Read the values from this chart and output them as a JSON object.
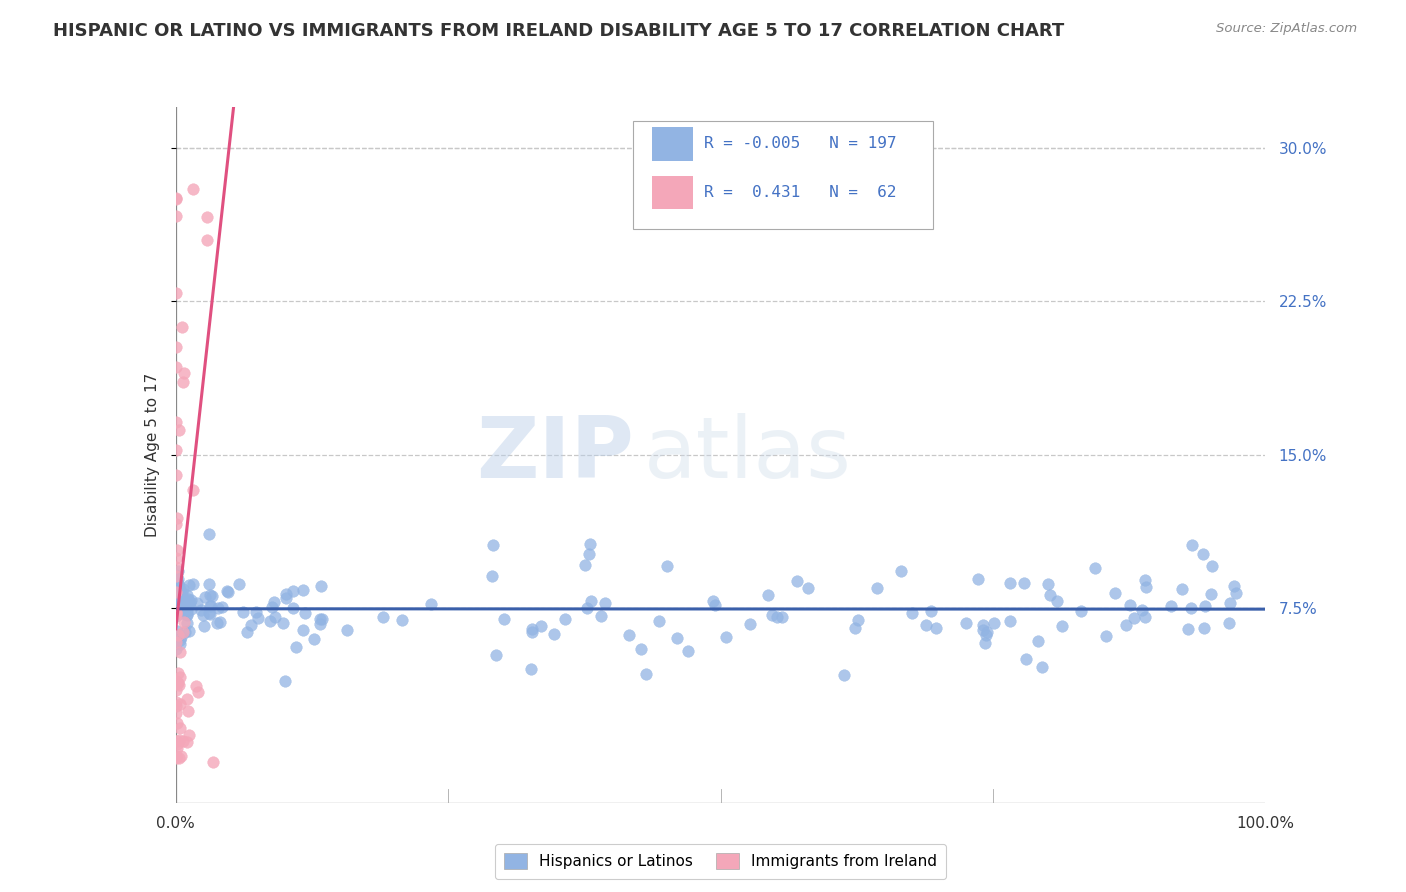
{
  "title": "HISPANIC OR LATINO VS IMMIGRANTS FROM IRELAND DISABILITY AGE 5 TO 17 CORRELATION CHART",
  "source_text": "Source: ZipAtlas.com",
  "ylabel": "Disability Age 5 to 17",
  "watermark_zip": "ZIP",
  "watermark_atlas": "atlas",
  "r_blue": -0.005,
  "n_blue": 197,
  "r_pink": 0.431,
  "n_pink": 62,
  "blue_scatter_color": "#92b4e3",
  "blue_line_color": "#3a5faa",
  "pink_scatter_color": "#f4a7b9",
  "pink_line_color": "#e05080",
  "background_color": "#ffffff",
  "grid_color": "#c8c8c8",
  "xlim": [
    0.0,
    1.0
  ],
  "ylim": [
    -0.02,
    0.32
  ],
  "yticks": [
    0.075,
    0.15,
    0.225,
    0.3
  ],
  "ytick_labels": [
    "7.5%",
    "15.0%",
    "22.5%",
    "30.0%"
  ],
  "xtick_labels": [
    "0.0%",
    "100.0%"
  ],
  "title_fontsize": 13,
  "ylabel_fontsize": 11,
  "tick_fontsize": 11,
  "legend_fontsize": 11.5
}
